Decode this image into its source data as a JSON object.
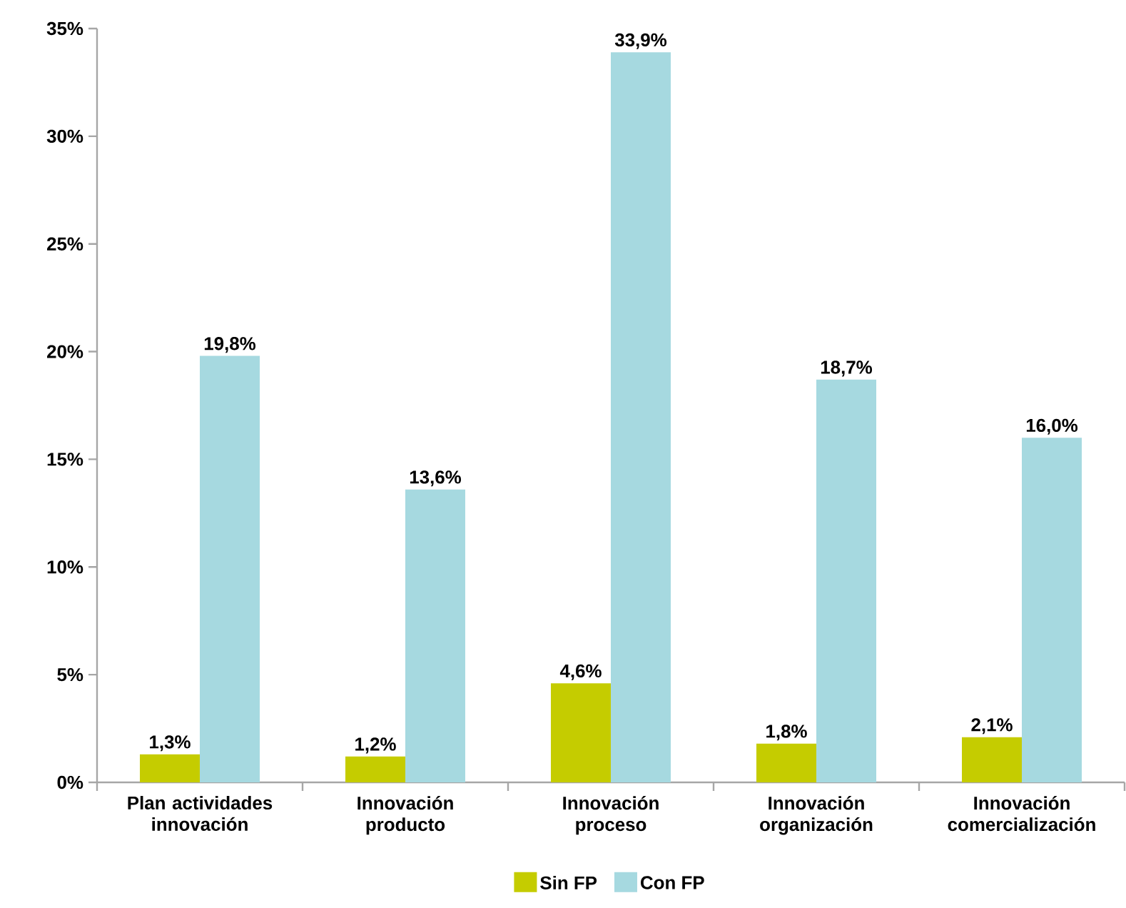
{
  "chart_data": {
    "type": "bar",
    "categories": [
      "Plan actividades innovación",
      "Innovación producto",
      "Innovación proceso",
      "Innovación organización",
      "Innovación comercialización"
    ],
    "series": [
      {
        "name": "Sin FP",
        "color": "#c5cc00",
        "values": [
          1.3,
          1.2,
          4.6,
          1.8,
          2.1
        ],
        "value_labels": [
          "1,3%",
          "1,2%",
          "4,6%",
          "1,8%",
          "2,1%"
        ]
      },
      {
        "name": "Con FP",
        "color": "#a6d9e0",
        "values": [
          19.8,
          13.6,
          33.9,
          18.7,
          16.0
        ],
        "value_labels": [
          "19,8%",
          "13,6%",
          "33,9%",
          "18,7%",
          "16,0%"
        ]
      }
    ],
    "ylim": [
      0,
      35
    ],
    "yticks": [
      {
        "value": 0,
        "label": "0%"
      },
      {
        "value": 5,
        "label": "5%"
      },
      {
        "value": 10,
        "label": "10%"
      },
      {
        "value": 15,
        "label": "15%"
      },
      {
        "value": 20,
        "label": "20%"
      },
      {
        "value": 25,
        "label": "25%"
      },
      {
        "value": 30,
        "label": "30%"
      },
      {
        "value": 35,
        "label": "35%"
      }
    ],
    "legend": "bottom"
  }
}
